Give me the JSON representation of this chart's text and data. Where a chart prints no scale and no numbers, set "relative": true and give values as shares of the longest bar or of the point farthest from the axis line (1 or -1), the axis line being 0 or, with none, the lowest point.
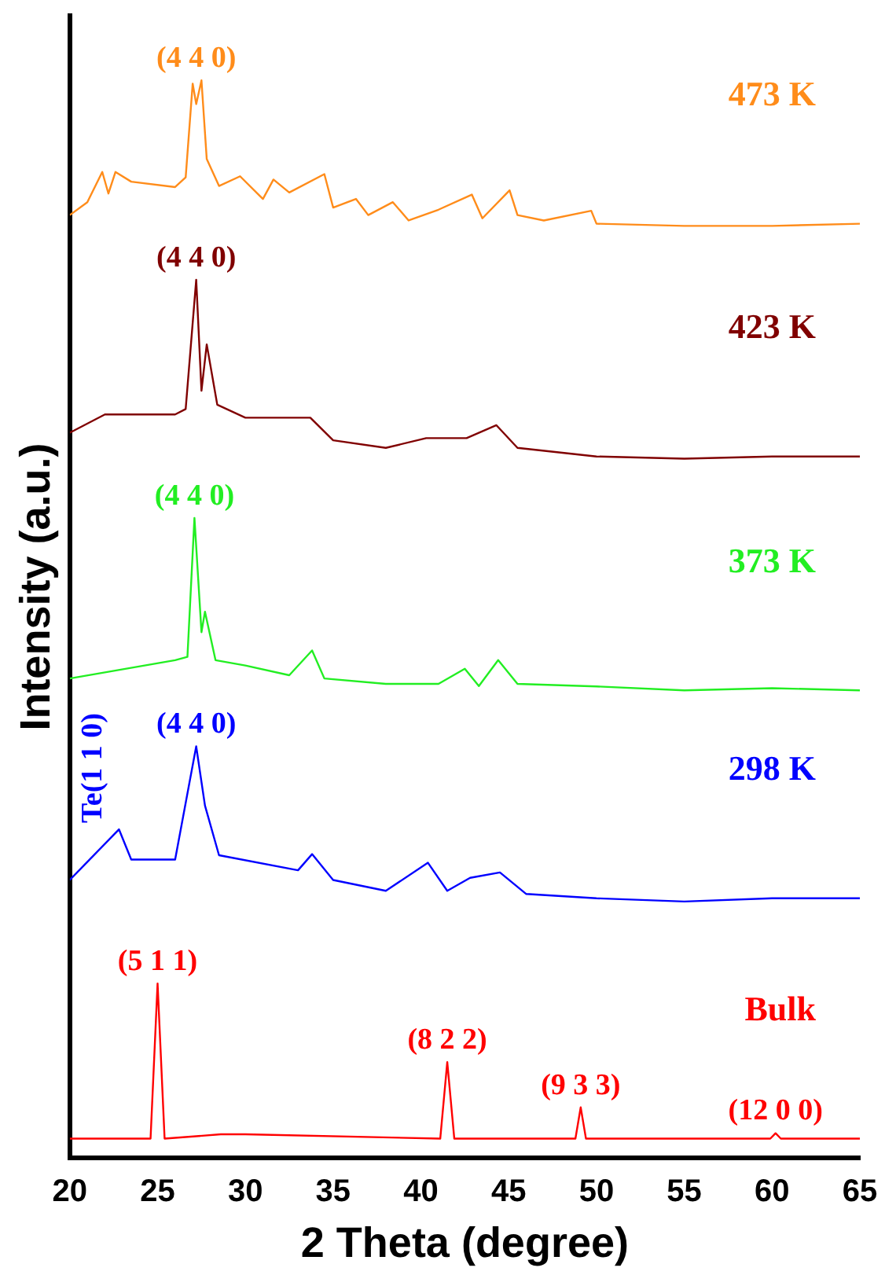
{
  "chart_data": {
    "type": "line",
    "relative": true,
    "xlabel": "2 Theta (degree)",
    "ylabel": "Intensity (a.u.)",
    "xlim": [
      20,
      65
    ],
    "xticks": [
      20,
      25,
      30,
      35,
      40,
      45,
      50,
      55,
      60,
      65
    ],
    "tick_labels": "x",
    "grid": false,
    "legend": false,
    "marker": "none",
    "line_style": "solid",
    "series": [
      {
        "name": "473 K",
        "color": "#ff8c1a",
        "x": [
          20,
          21,
          21.85,
          22.2,
          22.6,
          23.5,
          26,
          26.6,
          27,
          27.2,
          27.5,
          27.8,
          28.5,
          29.7,
          31,
          31.6,
          32.5,
          34.5,
          35,
          36.3,
          37,
          38.4,
          39.3,
          41,
          42.9,
          43.5,
          45.05,
          45.5,
          47,
          49.7,
          50,
          55,
          60,
          65
        ],
        "values": [
          0.875,
          0.887,
          0.915,
          0.895,
          0.915,
          0.906,
          0.901,
          0.91,
          0.997,
          0.978,
          1.0,
          0.927,
          0.902,
          0.911,
          0.89,
          0.908,
          0.896,
          0.913,
          0.882,
          0.89,
          0.875,
          0.887,
          0.87,
          0.88,
          0.894,
          0.872,
          0.898,
          0.875,
          0.87,
          0.879,
          0.867,
          0.865,
          0.865,
          0.867
        ]
      },
      {
        "name": "423 K",
        "color": "#800000",
        "x": [
          20,
          22,
          26,
          26.6,
          27.2,
          27.5,
          27.8,
          28.4,
          30,
          33.7,
          35,
          38,
          40.3,
          42.6,
          44.3,
          45.5,
          50,
          55,
          60,
          65
        ],
        "values": [
          0.673,
          0.69,
          0.69,
          0.695,
          0.815,
          0.712,
          0.755,
          0.699,
          0.687,
          0.687,
          0.666,
          0.659,
          0.668,
          0.668,
          0.68,
          0.659,
          0.651,
          0.649,
          0.651,
          0.651
        ]
      },
      {
        "name": "373 K",
        "color": "#22ee22",
        "x": [
          20,
          26,
          26.7,
          27.1,
          27.5,
          27.7,
          28.3,
          30,
          32.5,
          33.8,
          34.5,
          38,
          41,
          42.5,
          43.3,
          44.4,
          45.5,
          50,
          55,
          60,
          65
        ],
        "values": [
          0.445,
          0.462,
          0.465,
          0.594,
          0.488,
          0.507,
          0.462,
          0.457,
          0.448,
          0.471,
          0.445,
          0.44,
          0.44,
          0.454,
          0.438,
          0.462,
          0.44,
          0.4376,
          0.434,
          0.436,
          0.434
        ]
      },
      {
        "name": "298 K",
        "color": "#0000ff",
        "x": [
          20,
          22.8,
          23.5,
          26,
          27.2,
          27.7,
          28.5,
          33,
          33.8,
          35,
          38,
          40.4,
          41.5,
          42.8,
          44.5,
          46,
          50,
          55,
          60,
          65
        ],
        "values": [
          0.258,
          0.305,
          0.277,
          0.277,
          0.382,
          0.327,
          0.281,
          0.267,
          0.282,
          0.258,
          0.248,
          0.274,
          0.248,
          0.26,
          0.265,
          0.245,
          0.241,
          0.238,
          0.241,
          0.241
        ]
      },
      {
        "name": "Bulk",
        "color": "#ff0000",
        "x": [
          20,
          24.6,
          25,
          25.4,
          28.6,
          29,
          30,
          41.1,
          41.5,
          41.9,
          48.8,
          49.1,
          49.4,
          59.9,
          60.2,
          60.5,
          65
        ],
        "values": [
          0.018,
          0.018,
          0.162,
          0.018,
          0.022,
          0.022,
          0.022,
          0.018,
          0.089,
          0.018,
          0.018,
          0.047,
          0.018,
          0.018,
          0.023,
          0.018,
          0.018
        ]
      }
    ],
    "annotations": [
      {
        "text": "(4 4 0)",
        "x": 27.2,
        "y": 1.0
      },
      {
        "text": "(4 4 0)",
        "x": 27.2,
        "y": 0.815
      },
      {
        "text": "(4 4 0)",
        "x": 27.1,
        "y": 0.594
      },
      {
        "text": "(4 4 0)",
        "x": 27.2,
        "y": 0.382
      },
      {
        "text": "Te(1 1 0)",
        "x": 22.8,
        "y": 0.305
      },
      {
        "text": "(5 1 1)",
        "x": 25,
        "y": 0.162
      },
      {
        "text": "(8 2 2)",
        "x": 41.5,
        "y": 0.089
      },
      {
        "text": "(9 3 3)",
        "x": 49.1,
        "y": 0.047
      },
      {
        "text": "(12 0 0)",
        "x": 60.2,
        "y": 0.023
      }
    ]
  }
}
